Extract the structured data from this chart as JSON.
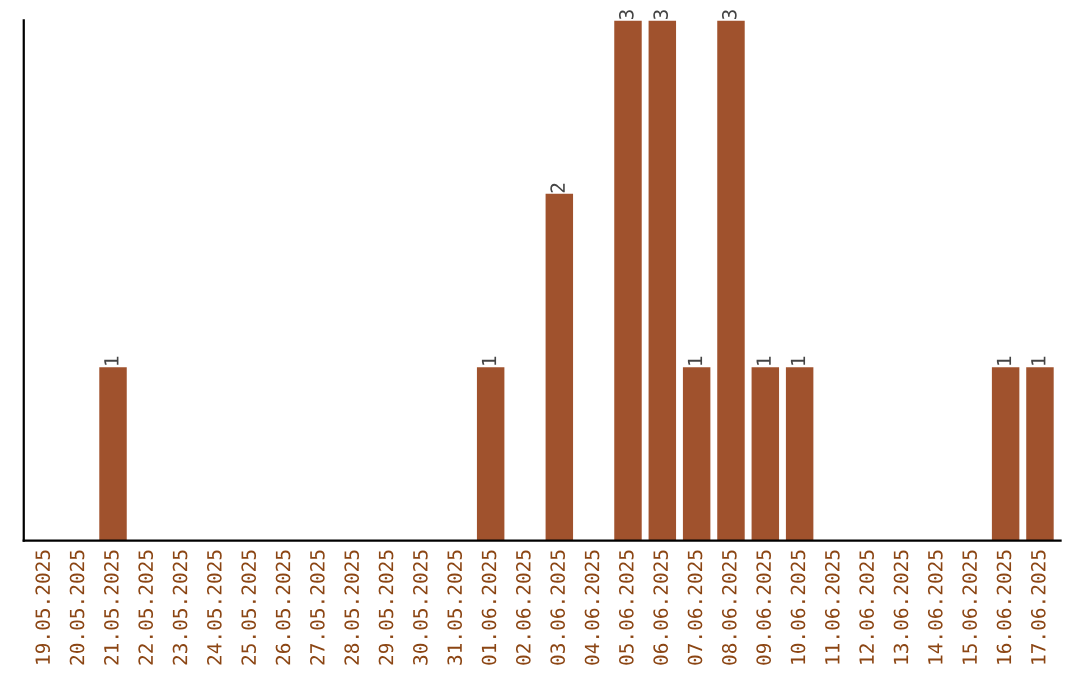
{
  "chart_data": {
    "type": "bar",
    "categories": [
      "19.05.2025",
      "20.05.2025",
      "21.05.2025",
      "22.05.2025",
      "23.05.2025",
      "24.05.2025",
      "25.05.2025",
      "26.05.2025",
      "27.05.2025",
      "28.05.2025",
      "29.05.2025",
      "30.05.2025",
      "31.05.2025",
      "01.06.2025",
      "02.06.2025",
      "03.06.2025",
      "04.06.2025",
      "05.06.2025",
      "06.06.2025",
      "07.06.2025",
      "08.06.2025",
      "09.06.2025",
      "10.06.2025",
      "11.06.2025",
      "12.06.2025",
      "13.06.2025",
      "14.06.2025",
      "15.06.2025",
      "16.06.2025",
      "17.06.2025"
    ],
    "values": [
      0,
      0,
      1,
      0,
      0,
      0,
      0,
      0,
      0,
      0,
      0,
      0,
      0,
      1,
      0,
      2,
      0,
      3,
      3,
      1,
      3,
      1,
      1,
      0,
      0,
      0,
      0,
      0,
      1,
      1
    ],
    "value_labels": [
      null,
      null,
      "1",
      null,
      null,
      null,
      null,
      null,
      null,
      null,
      null,
      null,
      null,
      "1",
      null,
      "2",
      null,
      "3",
      "3",
      "1",
      "3",
      "1",
      "1",
      null,
      null,
      null,
      null,
      null,
      "1",
      "1"
    ],
    "color": "#a0522d",
    "tick_labels": "x",
    "grid": false
  }
}
